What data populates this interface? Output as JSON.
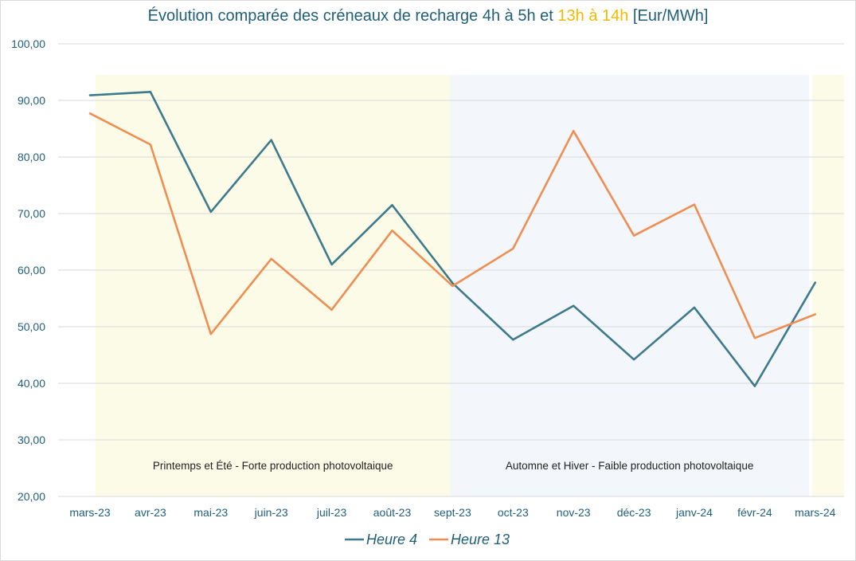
{
  "title": {
    "part1": "Évolution comparée des créneaux de recharge 4h à 5h et ",
    "part2": "13h à 14h",
    "part3": " [Eur/MWh]"
  },
  "colors": {
    "series1": "#3d7a8c",
    "series2": "#ee8e53",
    "highlight": "#f5b800",
    "summer_band": "#fcfbe8",
    "winter_band": "#f3f6fa",
    "axis_text": "#1f5f7a",
    "grid": "#d9d9d9"
  },
  "chart_data": {
    "type": "line",
    "categories": [
      "mars-23",
      "avr-23",
      "mai-23",
      "juin-23",
      "juil-23",
      "août-23",
      "sept-23",
      "oct-23",
      "nov-23",
      "déc-23",
      "janv-24",
      "févr-24",
      "mars-24"
    ],
    "series": [
      {
        "name": "Heure 4",
        "values": [
          90.9,
          91.5,
          70.3,
          83.0,
          61.0,
          71.5,
          57.7,
          47.7,
          53.7,
          44.2,
          53.4,
          39.5,
          57.8
        ]
      },
      {
        "name": "Heure 13",
        "values": [
          87.7,
          82.2,
          48.7,
          62.0,
          53.0,
          67.0,
          57.2,
          63.8,
          84.6,
          66.1,
          71.6,
          48.0,
          52.2
        ]
      }
    ],
    "ylim": [
      20,
      100
    ],
    "yticks": [
      "20,00",
      "30,00",
      "40,00",
      "50,00",
      "60,00",
      "70,00",
      "80,00",
      "90,00",
      "100,00"
    ],
    "ytick_values": [
      20,
      30,
      40,
      50,
      60,
      70,
      80,
      90,
      100
    ],
    "grid": true,
    "legend_position": "bottom",
    "regions": [
      {
        "label": "Printemps et Été - Forte production photovoltaique",
        "from": "mars-23",
        "to": "sept-23",
        "color": "summer_band"
      },
      {
        "label": "Automne et Hiver - Faible production photovoltaique",
        "from": "sept-23",
        "to": "mars-24",
        "color": "winter_band"
      },
      {
        "label": "",
        "from": "mars-24",
        "to": "mars-24",
        "color": "summer_band"
      }
    ]
  }
}
